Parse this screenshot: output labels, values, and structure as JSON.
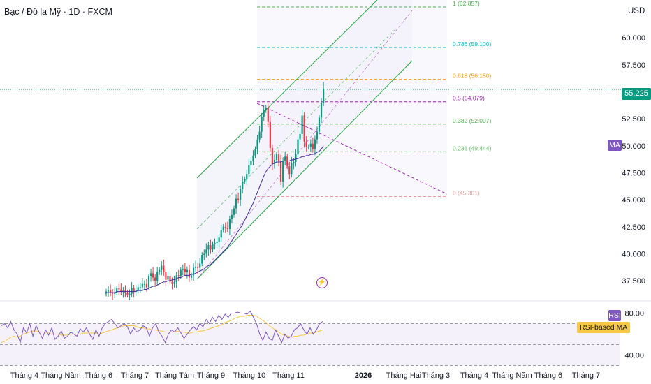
{
  "header": {
    "title": "Bạc / Đô la Mỹ · 1D · FXCM",
    "currency": "USD"
  },
  "colors": {
    "up": "#089981",
    "down": "#f23645",
    "ma": "#3f2d9c",
    "channel": "#26a641",
    "rsi": "#7e57c2",
    "rsi_ma": "#f7c844",
    "fib_line": "#9c27b0"
  },
  "chart_data": [
    {
      "type": "candlestick",
      "title": "",
      "price_axis": {
        "labels": [
          "60.000",
          "57.500",
          "55.000",
          "52.500",
          "50.000",
          "47.500",
          "45.000",
          "42.500",
          "40.000",
          "37.500"
        ],
        "range": [
          35.7,
          63.5
        ]
      },
      "time_axis": {
        "labels": [
          "Tháng 4",
          "Tháng Năm",
          "Tháng 6",
          "Tháng 7",
          "Tháng Tám",
          "Tháng 9",
          "Tháng 10",
          "Tháng 11",
          "2026",
          "Tháng Hai",
          "Tháng 3",
          "Tháng 4",
          "Tháng Năm",
          "Tháng 6",
          "Tháng 7"
        ],
        "bold": [
          "2026"
        ]
      },
      "last_price": "55.225",
      "ma_label": "MA",
      "fibonacci": [
        {
          "level": "1",
          "price": "62.857",
          "color": "#4caf50"
        },
        {
          "level": "0.786",
          "price": "59.100",
          "color": "#00bcd4"
        },
        {
          "level": "0.618",
          "price": "56.150",
          "color": "#ff9800"
        },
        {
          "level": "0.5",
          "price": "54.079",
          "color": "#9c27b0"
        },
        {
          "level": "0.382",
          "price": "52.007",
          "color": "#4caf50"
        },
        {
          "level": "0.236",
          "price": "49.444",
          "color": "#66bb6a"
        },
        {
          "level": "0",
          "price": "45.301",
          "color": "#ef9a9a"
        }
      ],
      "closes": [
        36.5,
        36.6,
        36.4,
        36.3,
        36.4,
        36.8,
        36.7,
        36.5,
        36.6,
        36.4,
        36.2,
        36.3,
        36.8,
        36.5,
        36.6,
        36.9,
        36.9,
        37.2,
        37.2,
        36.9,
        37.9,
        38.2,
        37.8,
        37.5,
        38.3,
        38.5,
        38.9,
        38.3,
        37.6,
        37.9,
        37.4,
        37.2,
        37.4,
        38.0,
        37.9,
        38.5,
        38.6,
        38.3,
        38.5,
        37.8,
        38.0,
        38.7,
        38.8,
        38.7,
        39.1,
        39.9,
        40.0,
        40.4,
        40.8,
        40.4,
        40.9,
        41.0,
        41.1,
        41.5,
        42.2,
        42.5,
        42.4,
        42.3,
        43.2,
        43.6,
        44.2,
        45.1,
        45.0,
        46.0,
        46.7,
        46.9,
        47.4,
        48.2,
        48.6,
        49.1,
        49.7,
        50.6,
        51.3,
        52.7,
        53.3,
        53.5,
        52.2,
        49.8,
        48.3,
        48.7,
        49.2,
        48.6,
        46.7,
        48.6,
        49.0,
        48.1,
        47.4,
        48.4,
        48.5,
        49.2,
        50.6,
        51.1,
        52.8,
        50.4,
        49.9,
        49.9,
        50.2,
        49.7,
        50.6,
        51.3,
        52.6,
        54.0,
        55.3
      ],
      "ma": [
        36.4,
        36.4,
        36.4,
        36.4,
        36.4,
        36.5,
        36.5,
        36.5,
        36.5,
        36.5,
        36.5,
        36.5,
        36.5,
        36.5,
        36.5,
        36.6,
        36.6,
        36.6,
        36.7,
        36.7,
        36.8,
        36.9,
        37.0,
        37.0,
        37.1,
        37.2,
        37.3,
        37.4,
        37.4,
        37.5,
        37.5,
        37.6,
        37.6,
        37.7,
        37.8,
        37.8,
        37.9,
        38.0,
        38.0,
        38.0,
        38.1,
        38.1,
        38.2,
        38.3,
        38.4,
        38.5,
        38.6,
        38.8,
        38.9,
        39.0,
        39.2,
        39.4,
        39.6,
        39.8,
        40.0,
        40.2,
        40.4,
        40.6,
        40.9,
        41.2,
        41.5,
        41.8,
        42.1,
        42.4,
        42.7,
        43.1,
        43.5,
        43.9,
        44.3,
        44.7,
        45.2,
        45.7,
        46.2,
        46.7,
        47.2,
        47.6,
        47.9,
        48.1,
        48.3,
        48.4,
        48.5,
        48.5,
        48.5,
        48.6,
        48.6,
        48.6,
        48.6,
        48.7,
        48.7,
        48.8,
        48.8,
        48.9,
        49.0,
        49.0,
        49.1,
        49.1,
        49.2,
        49.2,
        49.3,
        49.4,
        49.5,
        49.7,
        50.0
      ]
    },
    {
      "type": "line",
      "title": "",
      "y_axis": {
        "labels": [
          "80.00",
          "40.00"
        ],
        "range": [
          29,
          91
        ]
      },
      "bands": [
        70,
        50,
        30
      ],
      "series": [
        {
          "name": "RSI",
          "values": [
            68,
            70,
            66,
            72,
            64,
            60,
            52,
            66,
            61,
            70,
            58,
            68,
            62,
            56,
            64,
            59,
            66,
            55,
            58,
            63,
            56,
            58,
            62,
            60,
            58,
            65,
            62,
            66,
            60,
            55,
            64,
            58,
            66,
            70,
            72,
            74,
            70,
            66,
            68,
            70,
            67,
            60,
            66,
            62,
            64,
            68,
            66,
            58,
            66,
            70,
            62,
            58,
            52,
            60,
            64,
            62,
            66,
            61,
            56,
            60,
            64,
            67,
            64,
            70,
            67,
            74,
            70,
            76,
            72,
            78,
            74,
            79,
            76,
            80,
            80,
            81,
            80,
            80,
            79,
            82,
            76,
            70,
            60,
            54,
            62,
            56,
            54,
            64,
            58,
            52,
            60,
            56,
            58,
            64,
            66,
            70,
            64,
            60,
            66,
            60,
            64,
            70,
            72
          ]
        },
        {
          "name": "RSI-based MA",
          "values": [
            52,
            53,
            55,
            57,
            58,
            57,
            58,
            60,
            61,
            62,
            63,
            63,
            62,
            62,
            62,
            61,
            60,
            60,
            60,
            59,
            59,
            59,
            60,
            60,
            60,
            60,
            61,
            61,
            61,
            61,
            61,
            60,
            61,
            62,
            63,
            64,
            65,
            66,
            67,
            68,
            68,
            68,
            68,
            67,
            66,
            66,
            65,
            65,
            64,
            64,
            63,
            63,
            62,
            62,
            62,
            62,
            63,
            62,
            62,
            61,
            61,
            62,
            62,
            63,
            63,
            64,
            65,
            66,
            67,
            68,
            69,
            71,
            72,
            73,
            75,
            76,
            77,
            77,
            78,
            78,
            78,
            77,
            75,
            73,
            71,
            68,
            66,
            64,
            62,
            60,
            59,
            58,
            57,
            58,
            58,
            59,
            59,
            60,
            61,
            61,
            62,
            63,
            64
          ]
        }
      ]
    }
  ]
}
